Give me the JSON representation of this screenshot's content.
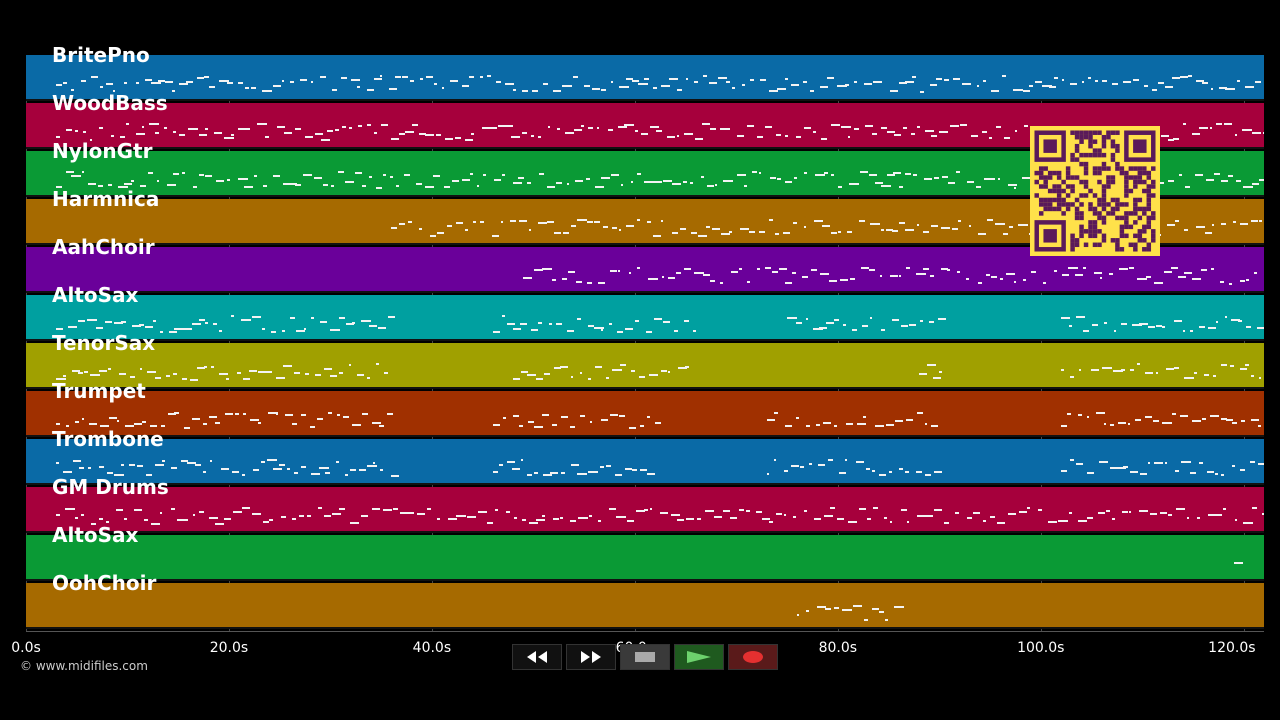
{
  "tracks": [
    {
      "name": "BritePno",
      "color": "#0a6aa6"
    },
    {
      "name": "WoodBass",
      "color": "#a6003c"
    },
    {
      "name": "NylonGtr",
      "color": "#0a9a35"
    },
    {
      "name": "Harmnica",
      "color": "#a66a00"
    },
    {
      "name": "AahChoir",
      "color": "#6a009a"
    },
    {
      "name": "AltoSax",
      "color": "#00a0a0"
    },
    {
      "name": "TenorSax",
      "color": "#a0a000"
    },
    {
      "name": "Trumpet",
      "color": "#a03000"
    },
    {
      "name": "Trombone",
      "color": "#0a6aa6"
    },
    {
      "name": "GM Drums",
      "color": "#a6003c"
    },
    {
      "name": "AltoSax",
      "color": "#0a9a35"
    },
    {
      "name": "OohChoir",
      "color": "#a66a00"
    }
  ],
  "timeline": {
    "ticks": [
      "0.0s",
      "20.0s",
      "40.0s",
      "60.0s",
      "80.0s",
      "100.0s",
      "120.0s"
    ],
    "tick_values": [
      0,
      20,
      40,
      60,
      80,
      100,
      120
    ],
    "max_seconds": 122
  },
  "copyright": "© www.midifiles.com",
  "transport": {
    "rewind_icon": "rewind-icon",
    "forward_icon": "fast-forward-icon",
    "stop_icon": "stop-icon",
    "play_icon": "play-icon",
    "record_icon": "record-icon"
  },
  "colors": {
    "background": "#000000",
    "note": "#f3f3f3",
    "qr_bg": "#ffe14a",
    "qr_fg": "#5a1a5a"
  }
}
